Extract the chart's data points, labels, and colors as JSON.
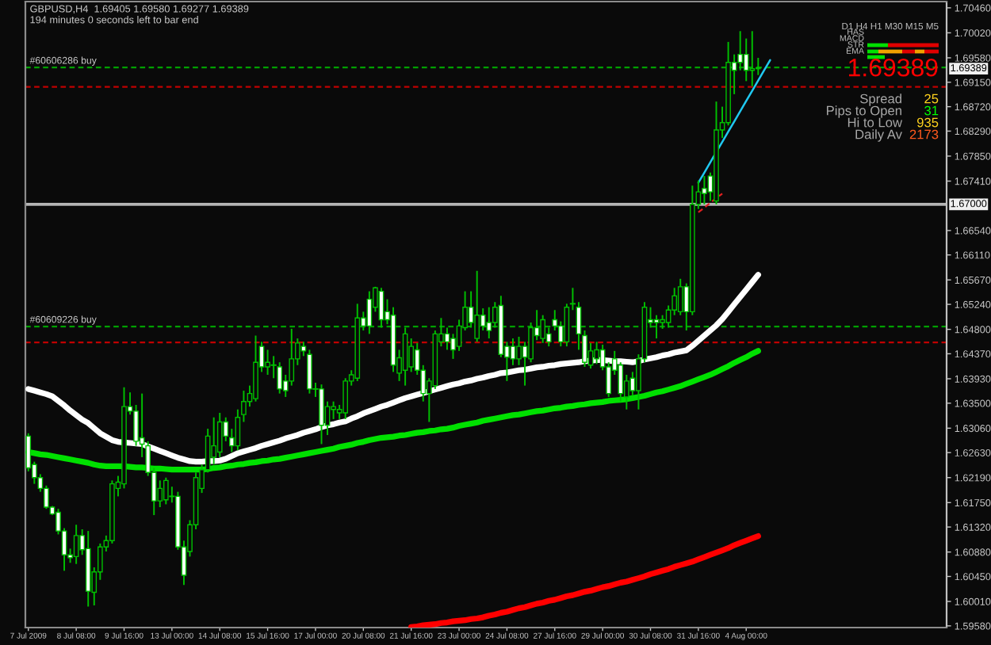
{
  "chart_data": {
    "type": "candlestick",
    "title": "GBPUSD,H4  1.69405 1.69580 1.69277 1.69389",
    "subtitle": "194 minutes 0 seconds left to bar end",
    "categories": [
      "7 Jul 2009",
      null,
      null,
      null,
      null,
      null,
      null,
      null,
      "8 Jul 08:00",
      null,
      null,
      null,
      null,
      null,
      null,
      null,
      "9 Jul 16:00",
      null,
      null,
      null,
      null,
      null,
      null,
      null,
      "13 Jul 00:00",
      null,
      null,
      null,
      null,
      null,
      null,
      null,
      "14 Jul 08:00",
      null,
      null,
      null,
      null,
      null,
      null,
      null,
      "15 Jul 16:00",
      null,
      null,
      null,
      null,
      null,
      null,
      null,
      "17 Jul 00:00",
      null,
      null,
      null,
      null,
      null,
      null,
      null,
      "20 Jul 08:00",
      null,
      null,
      null,
      null,
      null,
      null,
      null,
      "21 Jul 16:00",
      null,
      null,
      null,
      null,
      null,
      null,
      null,
      "23 Jul 00:00",
      null,
      null,
      null,
      null,
      null,
      null,
      null,
      "24 Jul 08:00",
      null,
      null,
      null,
      null,
      null,
      null,
      null,
      "27 Jul 16:00",
      null,
      null,
      null,
      null,
      null,
      null,
      null,
      "29 Jul 00:00",
      null,
      null,
      null,
      null,
      null,
      null,
      null,
      "30 Jul 08:00",
      null,
      null,
      null,
      null,
      null,
      null,
      null,
      "31 Jul 16:00",
      null,
      null,
      null,
      null,
      null,
      null,
      null,
      "4 Aug 00:00",
      null,
      null,
      null,
      null,
      null,
      null,
      null,
      null,
      null,
      null,
      null,
      null,
      null,
      null,
      null,
      null,
      null,
      null,
      null,
      null,
      null,
      null,
      null,
      null,
      null,
      null,
      null,
      null,
      null,
      null,
      null,
      null,
      null
    ],
    "ohlc": [
      [
        1.6292,
        1.6297,
        1.623,
        1.6236
      ],
      [
        1.6242,
        1.6247,
        1.6208,
        1.6219
      ],
      [
        1.6219,
        1.6225,
        1.6194,
        1.62
      ],
      [
        1.62,
        1.6205,
        1.6164,
        1.6167
      ],
      [
        1.6167,
        1.6169,
        1.6153,
        1.6155
      ],
      [
        1.6158,
        1.6164,
        1.6119,
        1.6125
      ],
      [
        1.6125,
        1.613,
        1.6055,
        1.6083
      ],
      [
        1.6083,
        1.6094,
        1.6069,
        1.6078
      ],
      [
        1.608,
        1.6136,
        1.6067,
        1.6117
      ],
      [
        1.6117,
        1.6128,
        1.6083,
        1.6092
      ],
      [
        1.6094,
        1.6125,
        1.5992,
        1.6019
      ],
      [
        1.6017,
        1.6061,
        1.5994,
        1.6053
      ],
      [
        1.6053,
        1.6103,
        1.6039,
        1.6097
      ],
      [
        1.6097,
        1.6117,
        1.6089,
        1.6108
      ],
      [
        1.6108,
        1.6214,
        1.6103,
        1.6208
      ],
      [
        1.62,
        1.6222,
        1.6186,
        1.6211
      ],
      [
        1.6208,
        1.6378,
        1.62,
        1.6344
      ],
      [
        1.6344,
        1.6369,
        1.633,
        1.6336
      ],
      [
        1.6336,
        1.6347,
        1.6275,
        1.6283
      ],
      [
        1.6289,
        1.6367,
        1.6255,
        1.6278
      ],
      [
        1.6275,
        1.6283,
        1.6222,
        1.6228
      ],
      [
        1.6228,
        1.6236,
        1.6153,
        1.6178
      ],
      [
        1.6178,
        1.6214,
        1.6167,
        1.62
      ],
      [
        1.618,
        1.6219,
        1.6172,
        1.6214
      ],
      [
        1.6186,
        1.6203,
        1.6175,
        1.6186
      ],
      [
        1.6186,
        1.6194,
        1.6092,
        1.6097
      ],
      [
        1.6097,
        1.6108,
        1.603,
        1.6047
      ],
      [
        1.6089,
        1.6144,
        1.608,
        1.6136
      ],
      [
        1.6136,
        1.6228,
        1.6128,
        1.6219
      ],
      [
        1.62,
        1.6242,
        1.6192,
        1.6233
      ],
      [
        1.6233,
        1.6305,
        1.6228,
        1.6292
      ],
      [
        1.6255,
        1.6325,
        1.6242,
        1.6275
      ],
      [
        1.6264,
        1.6333,
        1.6255,
        1.6317
      ],
      [
        1.6317,
        1.6325,
        1.6283,
        1.6292
      ],
      [
        1.6289,
        1.6305,
        1.6264,
        1.6275
      ],
      [
        1.6275,
        1.6339,
        1.6267,
        1.6325
      ],
      [
        1.633,
        1.6372,
        1.6317,
        1.6353
      ],
      [
        1.6353,
        1.6381,
        1.6344,
        1.6367
      ],
      [
        1.6358,
        1.6469,
        1.6353,
        1.6422
      ],
      [
        1.645,
        1.6458,
        1.6405,
        1.6414
      ],
      [
        1.6414,
        1.6444,
        1.64,
        1.6422
      ],
      [
        1.6417,
        1.6433,
        1.6394,
        1.6417
      ],
      [
        1.6414,
        1.6422,
        1.6367,
        1.6375
      ],
      [
        1.6389,
        1.64,
        1.6361,
        1.6372
      ],
      [
        1.6389,
        1.6481,
        1.6381,
        1.6428
      ],
      [
        1.6428,
        1.6464,
        1.6417,
        1.6456
      ],
      [
        1.645,
        1.6458,
        1.6433,
        1.6442
      ],
      [
        1.6436,
        1.6444,
        1.6367,
        1.6375
      ],
      [
        1.6375,
        1.6386,
        1.6361,
        1.6375
      ],
      [
        1.6375,
        1.6383,
        1.6278,
        1.6311
      ],
      [
        1.6311,
        1.6353,
        1.6294,
        1.6344
      ],
      [
        1.6339,
        1.6353,
        1.6322,
        1.6344
      ],
      [
        1.6333,
        1.6347,
        1.6322,
        1.6339
      ],
      [
        1.6333,
        1.6394,
        1.6322,
        1.6389
      ],
      [
        1.6389,
        1.6408,
        1.6381,
        1.64
      ],
      [
        1.6394,
        1.6525,
        1.6389,
        1.65
      ],
      [
        1.65,
        1.6511,
        1.6478,
        1.6486
      ],
      [
        1.6533,
        1.6547,
        1.6472,
        1.6486
      ],
      [
        1.6519,
        1.6555,
        1.6511,
        1.6553
      ],
      [
        1.6547,
        1.6553,
        1.6483,
        1.6497
      ],
      [
        1.6511,
        1.6533,
        1.6489,
        1.6497
      ],
      [
        1.6505,
        1.6519,
        1.6405,
        1.6417
      ],
      [
        1.6403,
        1.6444,
        1.6389,
        1.643
      ],
      [
        1.6408,
        1.6483,
        1.6381,
        1.6472
      ],
      [
        1.6414,
        1.6464,
        1.6405,
        1.645
      ],
      [
        1.6444,
        1.6456,
        1.64,
        1.6408
      ],
      [
        1.6408,
        1.6417,
        1.6353,
        1.6367
      ],
      [
        1.6367,
        1.6394,
        1.6317,
        1.6389
      ],
      [
        1.6381,
        1.6478,
        1.6375,
        1.6472
      ],
      [
        1.6458,
        1.65,
        1.645,
        1.6472
      ],
      [
        1.6472,
        1.6483,
        1.6444,
        1.6458
      ],
      [
        1.6464,
        1.6472,
        1.6428,
        1.6444
      ],
      [
        1.645,
        1.6497,
        1.6442,
        1.6486
      ],
      [
        1.6483,
        1.6547,
        1.6478,
        1.6519
      ],
      [
        1.6519,
        1.6547,
        1.6483,
        1.6492
      ],
      [
        1.6464,
        1.6583,
        1.6458,
        1.6505
      ],
      [
        1.6505,
        1.6517,
        1.6478,
        1.6486
      ],
      [
        1.6492,
        1.6519,
        1.6464,
        1.6478
      ],
      [
        1.6492,
        1.6528,
        1.6483,
        1.6519
      ],
      [
        1.6522,
        1.6539,
        1.6431,
        1.6436
      ],
      [
        1.645,
        1.6458,
        1.6389,
        1.6431
      ],
      [
        1.645,
        1.6464,
        1.6417,
        1.6428
      ],
      [
        1.6428,
        1.6467,
        1.6417,
        1.645
      ],
      [
        1.645,
        1.6458,
        1.6381,
        1.6431
      ],
      [
        1.6428,
        1.6492,
        1.6422,
        1.6483
      ],
      [
        1.6483,
        1.6514,
        1.6461,
        1.6469
      ],
      [
        1.6464,
        1.6505,
        1.6456,
        1.6497
      ],
      [
        1.6472,
        1.6483,
        1.645,
        1.6458
      ],
      [
        1.6497,
        1.6514,
        1.6478,
        1.6486
      ],
      [
        1.6486,
        1.6494,
        1.645,
        1.6458
      ],
      [
        1.6458,
        1.6525,
        1.645,
        1.6519
      ],
      [
        1.6525,
        1.6553,
        1.6514,
        1.6525
      ],
      [
        1.6519,
        1.6528,
        1.6444,
        1.6472
      ],
      [
        1.6469,
        1.6478,
        1.6414,
        1.6422
      ],
      [
        1.6417,
        1.6456,
        1.6411,
        1.6442
      ],
      [
        1.6428,
        1.6458,
        1.6419,
        1.6444
      ],
      [
        1.6444,
        1.6453,
        1.6408,
        1.6414
      ],
      [
        1.6414,
        1.6422,
        1.6361,
        1.6367
      ],
      [
        1.6428,
        1.6442,
        1.64,
        1.6408
      ],
      [
        1.6417,
        1.6422,
        1.6353,
        1.6367
      ],
      [
        1.6361,
        1.64,
        1.6339,
        1.6389
      ],
      [
        1.6394,
        1.6405,
        1.6364,
        1.6372
      ],
      [
        1.6372,
        1.6436,
        1.6339,
        1.6428
      ],
      [
        1.6428,
        1.6528,
        1.6422,
        1.6519
      ],
      [
        1.6497,
        1.6519,
        1.6483,
        1.6492
      ],
      [
        1.6497,
        1.6505,
        1.6464,
        1.6492
      ],
      [
        1.6492,
        1.6505,
        1.6481,
        1.6497
      ],
      [
        1.6492,
        1.6522,
        1.6483,
        1.6514
      ],
      [
        1.6514,
        1.6553,
        1.6505,
        1.6539
      ],
      [
        1.6511,
        1.6569,
        1.6505,
        1.6555
      ],
      [
        1.6555,
        1.6561,
        1.6478,
        1.6511
      ],
      [
        1.6511,
        1.6733,
        1.6505,
        1.67
      ],
      [
        1.67,
        1.6742,
        1.6692,
        1.6722
      ],
      [
        1.6728,
        1.675,
        1.67,
        1.6719
      ],
      [
        1.675,
        1.6756,
        1.6706,
        1.6722
      ],
      [
        1.6706,
        1.6881,
        1.67,
        1.6831
      ],
      [
        1.6831,
        1.6872,
        1.6817,
        1.6844
      ],
      [
        1.6844,
        1.6986,
        1.6839,
        1.695
      ],
      [
        1.695,
        1.6964,
        1.6894,
        1.6936
      ],
      [
        1.6964,
        1.7005,
        1.6936,
        1.695
      ],
      [
        1.6964,
        1.6992,
        1.6917,
        1.6936
      ],
      [
        1.6936,
        1.7005,
        1.6908,
        1.6939
      ],
      [
        1.69405,
        1.6958,
        1.69277,
        1.69389
      ],
      null,
      null,
      null,
      null,
      null,
      null,
      null,
      null,
      null,
      null,
      null,
      null,
      null,
      null,
      null,
      null,
      null,
      null,
      null,
      null,
      null,
      null,
      null,
      null,
      null,
      null,
      null,
      null,
      null,
      null,
      null
    ],
    "series": [
      {
        "type": "line",
        "color": "#ffffff",
        "values": [
          1.6375,
          1.6372,
          1.6369,
          1.6366,
          1.6362,
          1.6354,
          1.6346,
          1.6337,
          1.6329,
          1.6321,
          1.6315,
          1.6306,
          1.6297,
          1.6291,
          1.6285,
          1.6282,
          1.6281,
          1.628,
          1.6279,
          1.6278,
          1.6274,
          1.627,
          1.6266,
          1.6262,
          1.6258,
          1.6254,
          1.6251,
          1.6248,
          1.6247,
          1.6247,
          1.6248,
          1.6248,
          1.6249,
          1.6252,
          1.6257,
          1.6262,
          1.6265,
          1.6268,
          1.6271,
          1.6275,
          1.6278,
          1.6281,
          1.6284,
          1.6288,
          1.6291,
          1.6294,
          1.6298,
          1.6301,
          1.6304,
          1.6308,
          1.6311,
          1.6313,
          1.6316,
          1.6318,
          1.6323,
          1.6327,
          1.6332,
          1.6336,
          1.634,
          1.6344,
          1.6347,
          1.6351,
          1.6355,
          1.6359,
          1.6362,
          1.6365,
          1.6368,
          1.6371,
          1.6374,
          1.6377,
          1.638,
          1.6383,
          1.6385,
          1.6388,
          1.639,
          1.6393,
          1.6395,
          1.6398,
          1.64,
          1.6403,
          1.6404,
          1.6406,
          1.6408,
          1.6409,
          1.6411,
          1.6413,
          1.6414,
          1.6416,
          1.6417,
          1.6419,
          1.642,
          1.6421,
          1.6422,
          1.6424,
          1.6425,
          1.6426,
          1.6426,
          1.6425,
          1.6424,
          1.6424,
          1.6423,
          1.6422,
          1.6424,
          1.6427,
          1.6429,
          1.6431,
          1.6434,
          1.6436,
          1.6439,
          1.6441,
          1.6443,
          1.6451,
          1.646,
          1.6469,
          1.6478,
          1.6487,
          1.6498,
          1.6511,
          1.6524,
          1.6537,
          1.655,
          1.6563,
          1.6576,
          null,
          null,
          null,
          null,
          null,
          null,
          null,
          null,
          null,
          null,
          null,
          null,
          null,
          null,
          null,
          null,
          null,
          null,
          null,
          null,
          null,
          null,
          null,
          null,
          null,
          null,
          null,
          null,
          null,
          null,
          null
        ]
      },
      {
        "type": "line",
        "color": "#00e000",
        "values": [
          1.6264,
          1.6262,
          1.626,
          1.6259,
          1.6257,
          1.6255,
          1.6253,
          1.6251,
          1.6249,
          1.6247,
          1.6245,
          1.6242,
          1.624,
          1.6239,
          1.6239,
          1.6239,
          1.6239,
          1.6238,
          1.6237,
          1.6237,
          1.6236,
          1.6235,
          1.6235,
          1.6234,
          1.6233,
          1.6233,
          1.6233,
          1.6233,
          1.6233,
          1.6233,
          1.6234,
          1.6236,
          1.6237,
          1.6239,
          1.624,
          1.6242,
          1.6243,
          1.6245,
          1.6246,
          1.6248,
          1.6249,
          1.6251,
          1.6252,
          1.6254,
          1.6256,
          1.6258,
          1.626,
          1.6262,
          1.6264,
          1.6266,
          1.6268,
          1.627,
          1.6273,
          1.6275,
          1.6277,
          1.628,
          1.6282,
          1.6285,
          1.6287,
          1.6289,
          1.629,
          1.6291,
          1.6293,
          1.6294,
          1.6296,
          1.6298,
          1.6299,
          1.6301,
          1.6302,
          1.6304,
          1.6305,
          1.6307,
          1.631,
          1.6312,
          1.6314,
          1.6316,
          1.6319,
          1.6321,
          1.6323,
          1.6325,
          1.6327,
          1.6329,
          1.633,
          1.6332,
          1.6334,
          1.6336,
          1.6337,
          1.6339,
          1.6341,
          1.6342,
          1.6344,
          1.6345,
          1.6347,
          1.6348,
          1.635,
          1.6351,
          1.6352,
          1.6354,
          1.6355,
          1.6356,
          1.6357,
          1.6359,
          1.6361,
          1.6363,
          1.6366,
          1.6369,
          1.6371,
          1.6374,
          1.6377,
          1.638,
          1.6384,
          1.6388,
          1.6392,
          1.6396,
          1.64,
          1.6405,
          1.641,
          1.6415,
          1.6421,
          1.6426,
          1.6431,
          1.6437,
          1.6442,
          null,
          null,
          null,
          null,
          null,
          null,
          null,
          null,
          null,
          null,
          null,
          null,
          null,
          null,
          null,
          null,
          null,
          null,
          null,
          null,
          null,
          null,
          null,
          null,
          null,
          null,
          null,
          null,
          null,
          null,
          null
        ]
      },
      {
        "type": "line",
        "color": "#ff0000",
        "values": [
          null,
          null,
          null,
          null,
          null,
          null,
          null,
          null,
          null,
          null,
          null,
          null,
          null,
          null,
          null,
          null,
          null,
          null,
          null,
          null,
          null,
          null,
          null,
          null,
          null,
          null,
          null,
          null,
          null,
          null,
          null,
          null,
          null,
          null,
          null,
          null,
          null,
          null,
          null,
          null,
          null,
          null,
          null,
          null,
          null,
          null,
          null,
          null,
          null,
          null,
          null,
          null,
          null,
          null,
          null,
          null,
          null,
          null,
          null,
          null,
          null,
          null,
          null,
          null,
          1.5956,
          1.5957,
          1.5959,
          1.596,
          1.5961,
          1.5963,
          1.5964,
          1.5966,
          1.5967,
          1.5968,
          1.597,
          1.5971,
          1.5973,
          1.5976,
          1.5978,
          1.5981,
          1.5983,
          1.5986,
          1.5989,
          1.5991,
          1.5994,
          1.5997,
          1.5999,
          1.6002,
          1.6004,
          1.6007,
          1.601,
          1.6012,
          1.6015,
          1.6018,
          1.602,
          1.6023,
          1.6026,
          1.6028,
          1.6031,
          1.6034,
          1.6036,
          1.6039,
          1.6042,
          1.6045,
          1.6049,
          1.6052,
          1.6055,
          1.6058,
          1.6062,
          1.6065,
          1.6068,
          1.6071,
          1.6075,
          1.6079,
          1.6083,
          1.6087,
          1.6091,
          1.6095,
          1.61,
          1.6104,
          1.6108,
          1.6112,
          1.6116,
          null,
          null,
          null,
          null,
          null,
          null,
          null,
          null,
          null,
          null,
          null,
          null,
          null,
          null,
          null,
          null,
          null,
          null,
          null,
          null,
          null,
          null,
          null,
          null,
          null,
          null,
          null,
          null,
          null,
          null,
          null
        ]
      },
      {
        "type": "line",
        "color": "#20c8f0",
        "values": [
          null,
          null,
          null,
          null,
          null,
          null,
          null,
          null,
          null,
          null,
          null,
          null,
          null,
          null,
          null,
          null,
          null,
          null,
          null,
          null,
          null,
          null,
          null,
          null,
          null,
          null,
          null,
          null,
          null,
          null,
          null,
          null,
          null,
          null,
          null,
          null,
          null,
          null,
          null,
          null,
          null,
          null,
          null,
          null,
          null,
          null,
          null,
          null,
          null,
          null,
          null,
          null,
          null,
          null,
          null,
          null,
          null,
          null,
          null,
          null,
          null,
          null,
          null,
          null,
          null,
          null,
          null,
          null,
          null,
          null,
          null,
          null,
          null,
          null,
          null,
          null,
          null,
          null,
          null,
          null,
          null,
          null,
          null,
          null,
          null,
          null,
          null,
          null,
          null,
          null,
          null,
          null,
          null,
          null,
          null,
          null,
          null,
          null,
          null,
          null,
          null,
          null,
          null,
          null,
          null,
          null,
          null,
          null,
          null,
          null,
          null,
          null,
          1.6738,
          1.6756,
          1.6774,
          1.6792,
          1.681,
          1.6828,
          1.6846,
          1.6864,
          1.6882,
          1.69,
          1.6918,
          1.6936,
          1.6954,
          null,
          null,
          null,
          null,
          null,
          null,
          null,
          null,
          null,
          null,
          null,
          null,
          null,
          null,
          null,
          null,
          null,
          null,
          null,
          null,
          null,
          null,
          null,
          null,
          null,
          null,
          null,
          null,
          null
        ]
      },
      {
        "type": "line",
        "color": "#e02020",
        "line_style": "dashed",
        "values": [
          null,
          null,
          null,
          null,
          null,
          null,
          null,
          null,
          null,
          null,
          null,
          null,
          null,
          null,
          null,
          null,
          null,
          null,
          null,
          null,
          null,
          null,
          null,
          null,
          null,
          null,
          null,
          null,
          null,
          null,
          null,
          null,
          null,
          null,
          null,
          null,
          null,
          null,
          null,
          null,
          null,
          null,
          null,
          null,
          null,
          null,
          null,
          null,
          null,
          null,
          null,
          null,
          null,
          null,
          null,
          null,
          null,
          null,
          null,
          null,
          null,
          null,
          null,
          null,
          null,
          null,
          null,
          null,
          null,
          null,
          null,
          null,
          null,
          null,
          null,
          null,
          null,
          null,
          null,
          null,
          null,
          null,
          null,
          null,
          null,
          null,
          null,
          null,
          null,
          null,
          null,
          null,
          null,
          null,
          null,
          null,
          null,
          null,
          null,
          null,
          null,
          null,
          null,
          null,
          null,
          null,
          null,
          null,
          null,
          null,
          null,
          null,
          1.6686,
          1.6694,
          1.6703,
          1.6711,
          1.6719,
          null,
          null,
          null,
          null,
          null,
          null,
          null,
          null,
          null,
          null,
          null,
          null,
          null,
          null,
          null,
          null,
          null,
          null,
          null,
          null,
          null,
          null,
          null,
          null,
          null,
          null,
          null,
          null,
          null,
          null,
          null,
          null,
          null,
          null,
          null,
          null,
          null
        ]
      }
    ],
    "ylim": [
      1.5955,
      1.7057
    ],
    "yticks": [
      {
        "value": 1.5958,
        "label": "1.59580"
      },
      {
        "value": 1.6001,
        "label": "1.60010"
      },
      {
        "value": 1.6045,
        "label": "1.60450"
      },
      {
        "value": 1.6088,
        "label": "1.60880"
      },
      {
        "value": 1.6132,
        "label": "1.61320"
      },
      {
        "value": 1.6175,
        "label": "1.61750"
      },
      {
        "value": 1.6219,
        "label": "1.62190"
      },
      {
        "value": 1.6263,
        "label": "1.62630"
      },
      {
        "value": 1.6306,
        "label": "1.63060"
      },
      {
        "value": 1.635,
        "label": "1.63500"
      },
      {
        "value": 1.6393,
        "label": "1.63930"
      },
      {
        "value": 1.6437,
        "label": "1.64370"
      },
      {
        "value": 1.648,
        "label": "1.64800"
      },
      {
        "value": 1.6524,
        "label": "1.65240"
      },
      {
        "value": 1.6567,
        "label": "1.65670"
      },
      {
        "value": 1.6611,
        "label": "1.66110"
      },
      {
        "value": 1.6654,
        "label": "1.66540"
      },
      {
        "value": 1.6741,
        "label": "1.67410"
      },
      {
        "value": 1.6785,
        "label": "1.67850"
      },
      {
        "value": 1.6829,
        "label": "1.68290"
      },
      {
        "value": 1.6872,
        "label": "1.68720"
      },
      {
        "value": 1.6915,
        "label": "1.69150"
      },
      {
        "value": 1.6958,
        "label": "1.69580"
      },
      {
        "value": 1.7002,
        "label": "1.70020"
      },
      {
        "value": 1.7046,
        "label": "1.70460"
      }
    ],
    "ref_lines": [
      {
        "axis": "y",
        "value": 1.6941,
        "label": "#60606286 buy",
        "color": "#00a000",
        "line_style": "dashed"
      },
      {
        "axis": "y",
        "value": 1.6907,
        "color": "#c00000",
        "line_style": "dashed"
      },
      {
        "axis": "y",
        "value": 1.67,
        "label": "1.67000",
        "color": "#b4b4b4",
        "line_style": "solid"
      },
      {
        "axis": "y",
        "value": 1.6485,
        "label": "#60609226 buy",
        "color": "#00a000",
        "line_style": "dashed"
      },
      {
        "axis": "y",
        "value": 1.6457,
        "color": "#c00000",
        "line_style": "dashed"
      }
    ],
    "annotations": [
      "D1 H4 H1 M30 M15 M5",
      "HAS",
      "MACD",
      "STR",
      "EMA",
      "1.69389",
      "Spread",
      "25",
      "Pips to Open",
      "31",
      "Hi to Low",
      "935",
      "Daily Av",
      "2173",
      {
        "text": "1.69389",
        "y": 1.69389
      }
    ]
  }
}
